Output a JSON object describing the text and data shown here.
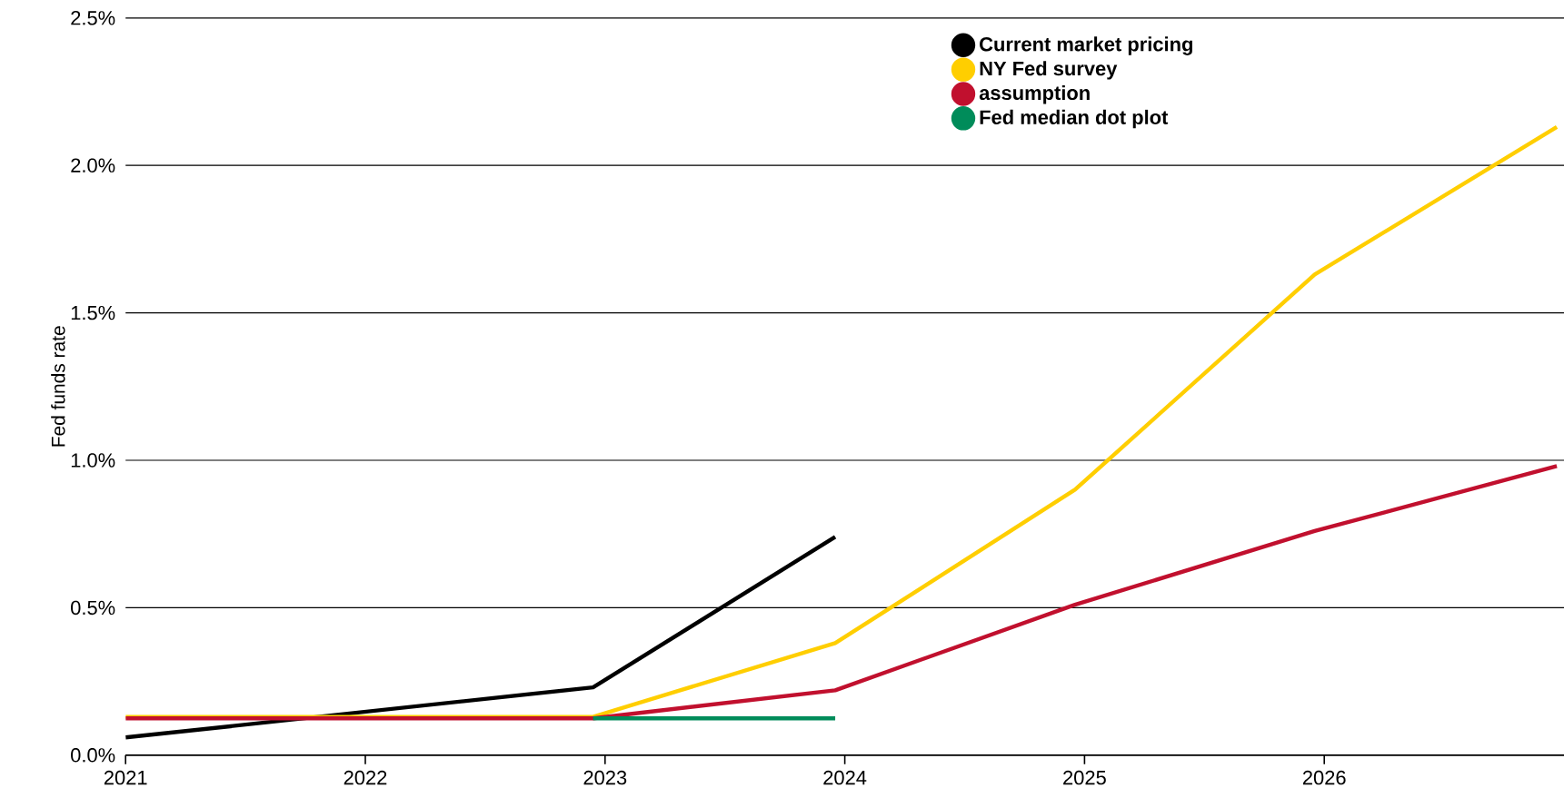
{
  "chart_data": {
    "type": "line",
    "ylabel": "Fed funds rate",
    "xlim": [
      2021,
      2027
    ],
    "xticks": [
      2021,
      2022,
      2023,
      2024,
      2025,
      2026
    ],
    "ylim": [
      0,
      2.5
    ],
    "yticks": [
      {
        "value": 0,
        "label": "0.0%"
      },
      {
        "value": 0.5,
        "label": "0.5%"
      },
      {
        "value": 1,
        "label": "1.0%"
      },
      {
        "value": 1.5,
        "label": "1.5%"
      },
      {
        "value": 2,
        "label": "2.0%"
      },
      {
        "value": 2.5,
        "label": "2.5%"
      }
    ],
    "grid": "y",
    "legend": "top right",
    "marker": "none",
    "line_style": "solid",
    "series": [
      {
        "name": "Current market pricing",
        "color": "#000000",
        "x": [
          2021,
          2022.95,
          2023.96
        ],
        "values": [
          0.06,
          0.23,
          0.74
        ]
      },
      {
        "name": "NY Fed survey",
        "color": "#ffce00",
        "x": [
          2021,
          2022.95,
          2023.96,
          2024.96,
          2025.96,
          2026.97
        ],
        "values": [
          0.13,
          0.13,
          0.38,
          0.9,
          1.63,
          2.13
        ]
      },
      {
        "name": "assumption",
        "color": "#c1102e",
        "x": [
          2021,
          2022.95,
          2023.96,
          2024.96,
          2025.96,
          2026.97
        ],
        "values": [
          0.125,
          0.125,
          0.22,
          0.51,
          0.76,
          0.98
        ]
      },
      {
        "name": "Fed median dot plot",
        "color": "#008c5a",
        "x": [
          2022.95,
          2023.96
        ],
        "values": [
          0.125,
          0.125
        ]
      }
    ]
  }
}
